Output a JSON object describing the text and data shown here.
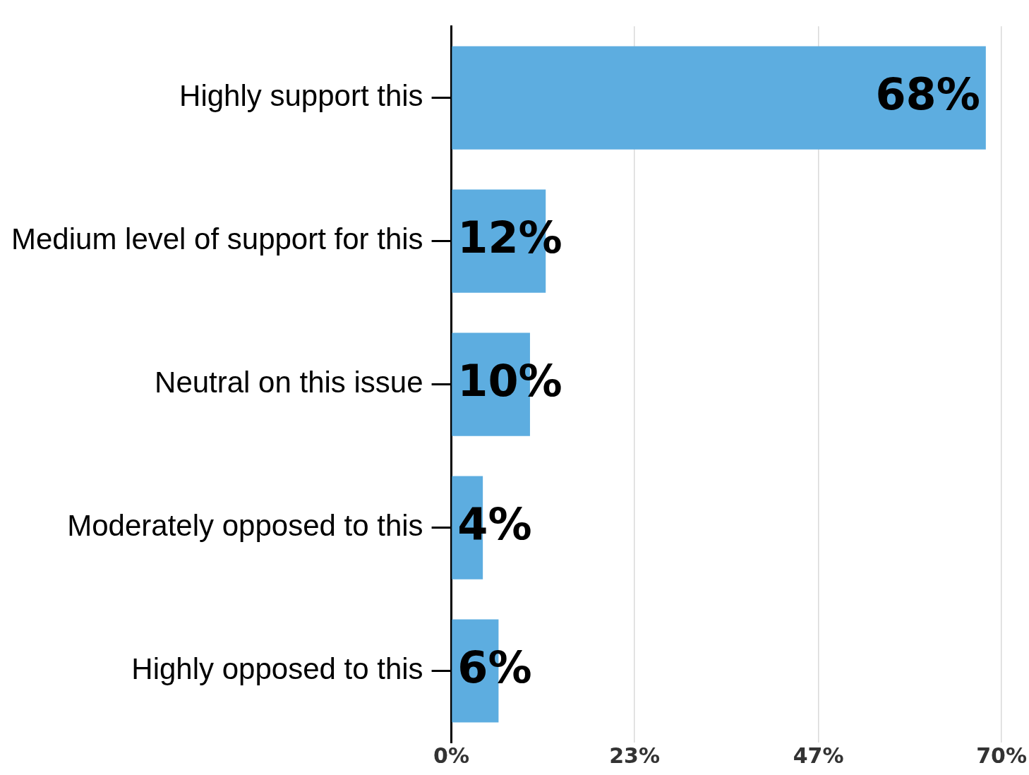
{
  "chart_data": {
    "type": "bar",
    "orientation": "horizontal",
    "categories": [
      "Highly support this",
      "Medium level of support for this",
      "Neutral on this issue",
      "Moderately opposed to this",
      "Highly opposed to this"
    ],
    "values": [
      68,
      12,
      10,
      4,
      6
    ],
    "color": "#5dade0",
    "xlim": [
      0,
      70
    ],
    "xticks": [
      {
        "value": 0,
        "label": "0%"
      },
      {
        "value": 23.3,
        "label": "23%"
      },
      {
        "value": 46.7,
        "label": "47%"
      },
      {
        "value": 70,
        "label": "70%"
      }
    ],
    "grid": "x",
    "legend": false,
    "value_labels": [
      "68%",
      "12%",
      "10%",
      "4%",
      "6%"
    ]
  }
}
